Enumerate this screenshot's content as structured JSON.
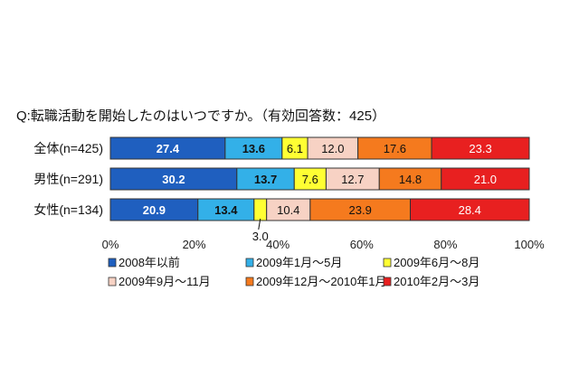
{
  "chart_data": {
    "type": "bar",
    "stacked": true,
    "orientation": "horizontal",
    "title": "Q:転職活動を開始したのはいつですか。（有効回答数：425）",
    "categories": [
      "全体(n=425)",
      "男性(n=291)",
      "女性(n=134)"
    ],
    "series": [
      {
        "name": "2008年以前",
        "color": "#1f5fbf",
        "values": [
          27.4,
          30.2,
          20.9
        ]
      },
      {
        "name": "2009年1月～5月",
        "color": "#33b0e8",
        "values": [
          13.6,
          13.7,
          13.4
        ]
      },
      {
        "name": "2009年6月～8月",
        "color": "#ffff33",
        "values": [
          6.1,
          7.6,
          3.0
        ]
      },
      {
        "name": "2009年9月～11月",
        "color": "#f7d2c4",
        "values": [
          12.0,
          12.7,
          10.4
        ]
      },
      {
        "name": "2009年12月～2010年1月",
        "color": "#f57a1e",
        "values": [
          17.6,
          14.8,
          23.9
        ]
      },
      {
        "name": "2010年2月～3月",
        "color": "#e82020",
        "values": [
          23.3,
          21.0,
          28.4
        ]
      }
    ],
    "xlim": [
      0,
      100
    ],
    "x_ticks": [
      "0%",
      "20%",
      "40%",
      "60%",
      "80%",
      "100%"
    ],
    "grid": false,
    "legend_position": "bottom"
  }
}
